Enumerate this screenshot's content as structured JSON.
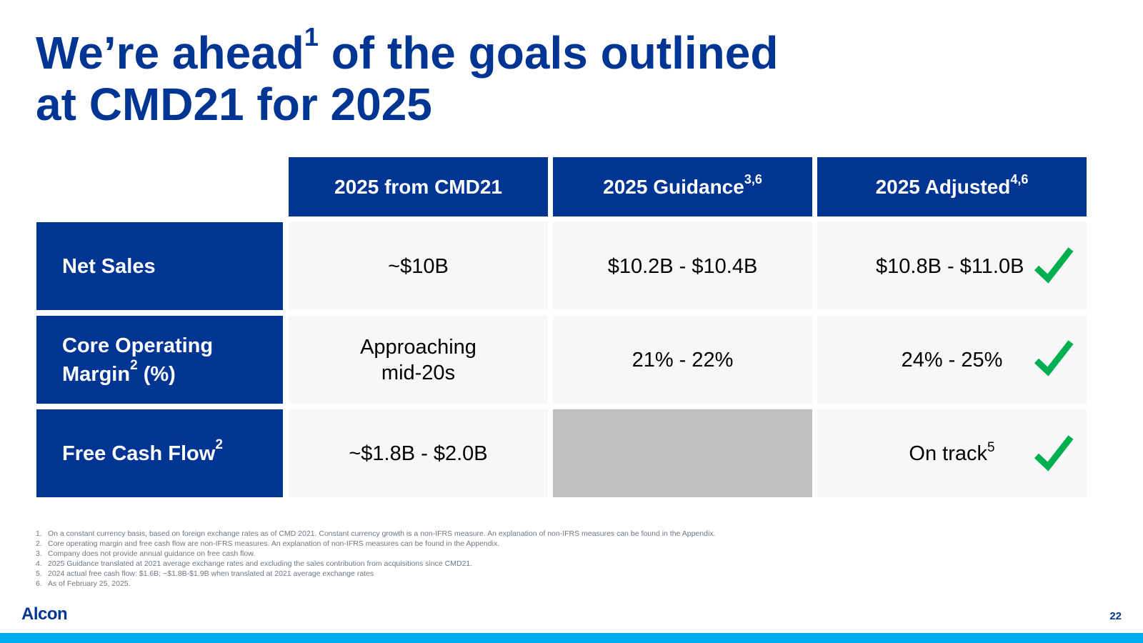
{
  "title": {
    "line1_a": "We’re ahead",
    "line1_sup": "1",
    "line1_b": " of the goals outlined",
    "line2": "at CMD21 for 2025"
  },
  "table": {
    "headers": [
      {
        "text": "2025 from CMD21",
        "sup": ""
      },
      {
        "text": "2025 Guidance",
        "sup": "3,6"
      },
      {
        "text": "2025 Adjusted",
        "sup": "4,6"
      }
    ],
    "rows": [
      {
        "label": "Net Sales",
        "values": [
          "~$10B",
          "$10.2B - $10.4B",
          "$10.8B - $11.0B"
        ],
        "check": true
      },
      {
        "label_line1": "Core Operating",
        "label_line2": "Margin",
        "label_sup": "2",
        "label_line2_suffix": " (%)",
        "value0_line1": "Approaching",
        "value0_line2": "mid-20s",
        "values": [
          "Approaching mid-20s",
          "21% - 22%",
          "24% - 25%"
        ],
        "check": true
      },
      {
        "label": "Free Cash Flow",
        "label_sup": "2",
        "values": [
          "~$1.8B - $2.0B",
          "",
          "On track"
        ],
        "value2_sup": "5",
        "check": true
      }
    ]
  },
  "footnotes": [
    {
      "num": "1.",
      "text": "On a constant currency basis, based on foreign exchange rates as of CMD 2021. Constant currency growth  is a non-IFRS measure. An explanation of non-IFRS measures can be found in the Appendix."
    },
    {
      "num": "2.",
      "text": "Core operating margin and free cash flow are non-IFRS measures. An explanation of non-IFRS measures can be found in the Appendix."
    },
    {
      "num": "3.",
      "text": "Company does not provide annual guidance on free cash flow."
    },
    {
      "num": "4.",
      "text": "2025 Guidance translated at 2021 average exchange rates and excluding the sales contribution from acquisitions since CMD21."
    },
    {
      "num": "5.",
      "text": "2024 actual free cash flow: $1.6B; ~$1.8B-$1.9B when translated at 2021 average exchange rates"
    },
    {
      "num": "6.",
      "text": "As of February 25, 2025."
    }
  ],
  "logo": "Alcon",
  "page_number": "22",
  "colors": {
    "brand_blue": "#003594",
    "check_green": "#00b050",
    "cell_bg": "#f7f7f7",
    "empty_cell": "#bfbfbf",
    "bottom_bar": "#00aeef"
  },
  "icons": {
    "check": "check-icon"
  }
}
